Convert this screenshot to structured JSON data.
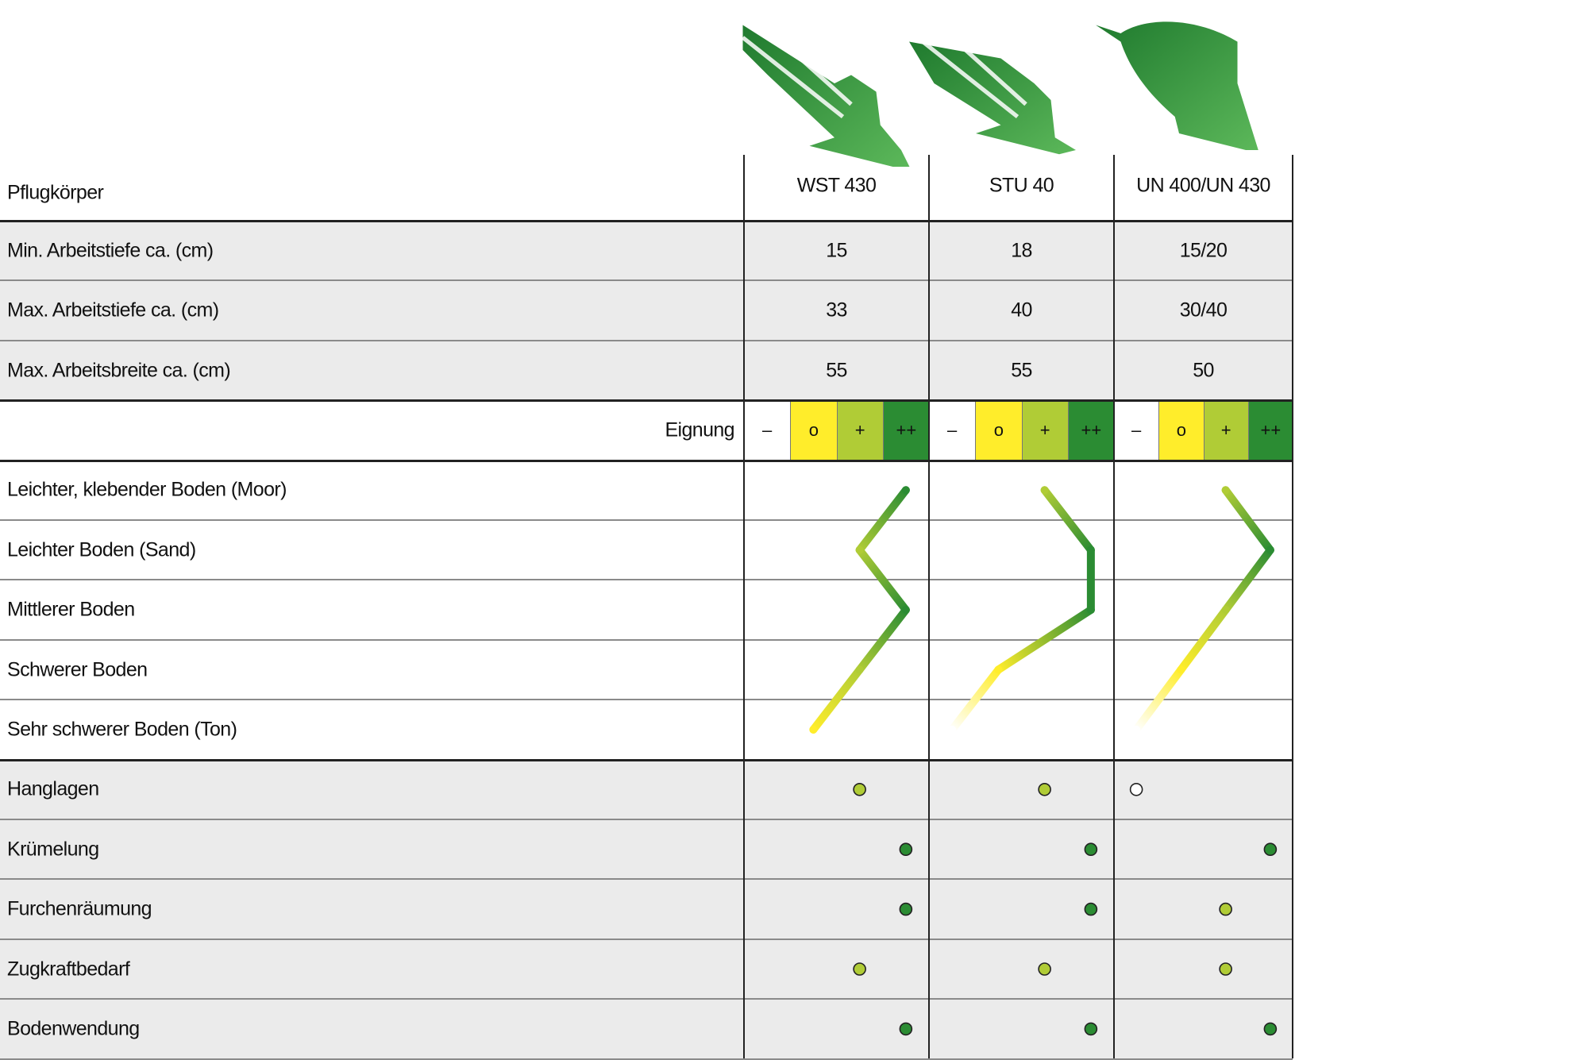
{
  "table": {
    "corner_label": "Pflugkörper",
    "columns": [
      "WST 430",
      "STU 40",
      "UN 400/UN 430"
    ],
    "numeric_rows": [
      {
        "label": "Min. Arbeitstiefe ca. (cm)",
        "values": [
          "15",
          "18",
          "15/20"
        ]
      },
      {
        "label": "Max. Arbeitstiefe ca. (cm)",
        "values": [
          "33",
          "40",
          "30/40"
        ]
      },
      {
        "label": "Max. Arbeitsbreite ca. (cm)",
        "values": [
          "55",
          "55",
          "50"
        ]
      }
    ],
    "scale_label": "Eignung",
    "scale": [
      {
        "symbol": "–",
        "color": "#ffffff"
      },
      {
        "symbol": "o",
        "color": "#ffed2b"
      },
      {
        "symbol": "+",
        "color": "#b0cc36"
      },
      {
        "symbol": "++",
        "color": "#2b8c33"
      }
    ]
  },
  "chart_data": {
    "type": "table",
    "scale_levels": [
      "–",
      "o",
      "+",
      "++"
    ],
    "columns": [
      "WST 430",
      "STU 40",
      "UN 400/UN 430"
    ],
    "soil_rows": {
      "categories": [
        "Leichter, klebender Boden (Moor)",
        "Leichter Boden (Sand)",
        "Mittlerer Boden",
        "Schwerer Boden",
        "Sehr schwerer Boden (Ton)"
      ],
      "series": [
        {
          "name": "WST 430",
          "values": [
            "++",
            "+",
            "++",
            "+",
            "o"
          ]
        },
        {
          "name": "STU 40",
          "values": [
            "+",
            "++",
            "++",
            "o",
            "–"
          ]
        },
        {
          "name": "UN 400/UN 430",
          "values": [
            "+",
            "++",
            "+",
            "o",
            "–"
          ]
        }
      ]
    },
    "feature_rows": {
      "categories": [
        "Hanglagen",
        "Krümelung",
        "Furchenräumung",
        "Zugkraftbedarf",
        "Bodenwendung"
      ],
      "series": [
        {
          "name": "WST 430",
          "values": [
            "+",
            "++",
            "++",
            "+",
            "++"
          ]
        },
        {
          "name": "STU 40",
          "values": [
            "+",
            "++",
            "++",
            "+",
            "++"
          ]
        },
        {
          "name": "UN 400/UN 430",
          "values": [
            "–",
            "++",
            "+",
            "+",
            "++"
          ]
        }
      ]
    }
  }
}
